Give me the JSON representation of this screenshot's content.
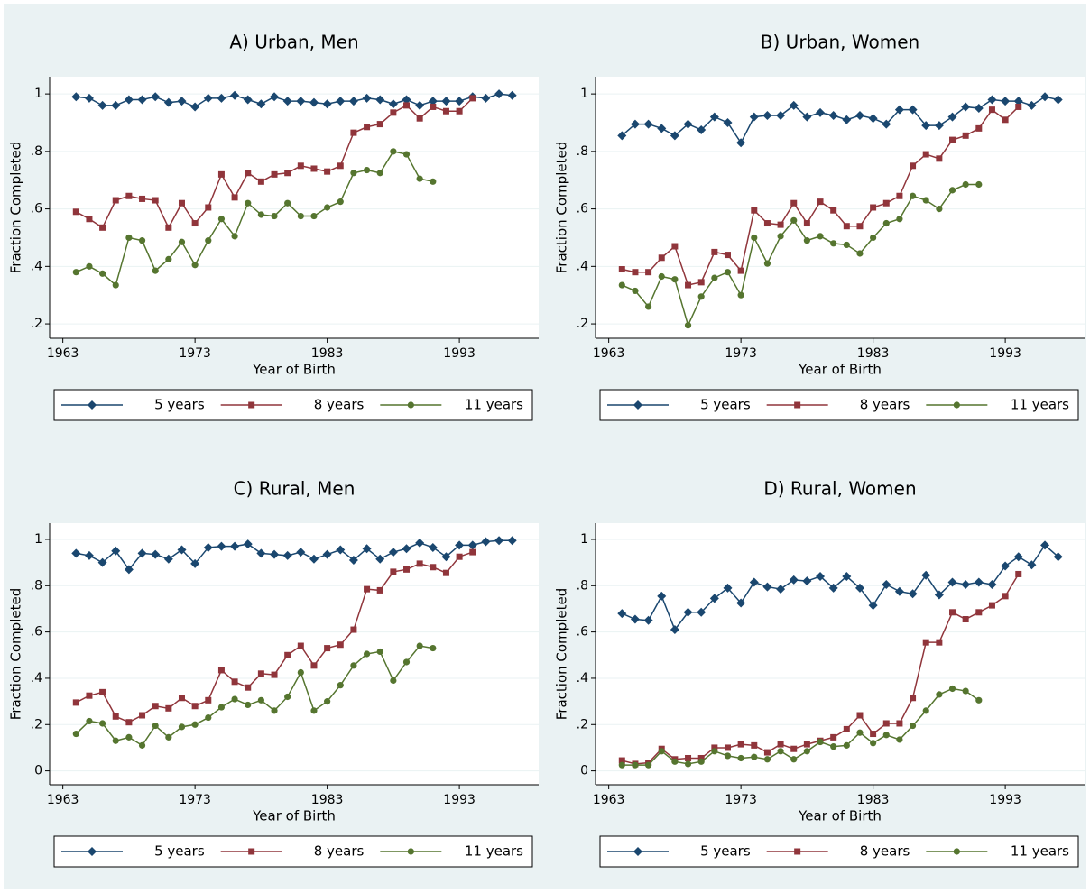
{
  "chart_data": [
    {
      "type": "line",
      "title": "A) Urban, Men",
      "x_label": "Year of Birth",
      "y_label": "Fraction Completed",
      "x": [
        1964,
        1965,
        1966,
        1967,
        1968,
        1969,
        1970,
        1971,
        1972,
        1973,
        1974,
        1975,
        1976,
        1977,
        1978,
        1979,
        1980,
        1981,
        1982,
        1983,
        1984,
        1985,
        1986,
        1987,
        1988,
        1989,
        1990,
        1991,
        1992,
        1993,
        1994,
        1995,
        1996,
        1997
      ],
      "xlim": [
        1962,
        1999
      ],
      "xticks": [
        1963,
        1973,
        1983,
        1993
      ],
      "ylim": [
        0.15,
        1.06
      ],
      "yticks": [
        {
          "value": 0.2,
          "label": ".2"
        },
        {
          "value": 0.4,
          "label": ".4"
        },
        {
          "value": 0.6,
          "label": ".6"
        },
        {
          "value": 0.8,
          "label": ".8"
        },
        1
      ],
      "grid": true,
      "series": [
        {
          "name": "5 years",
          "color": "#1a476f",
          "marker": "diamond",
          "values": [
            0.99,
            0.985,
            0.96,
            0.96,
            0.98,
            0.98,
            0.99,
            0.97,
            0.975,
            0.955,
            0.985,
            0.985,
            0.995,
            0.98,
            0.965,
            0.99,
            0.975,
            0.975,
            0.97,
            0.965,
            0.975,
            0.975,
            0.985,
            0.98,
            0.965,
            0.98,
            0.96,
            0.975,
            0.975,
            0.975,
            0.99,
            0.985,
            1.0,
            0.995
          ]
        },
        {
          "name": "8 years",
          "color": "#90353b",
          "marker": "square",
          "values": [
            0.59,
            0.565,
            0.535,
            0.63,
            0.645,
            0.635,
            0.63,
            0.535,
            0.62,
            0.55,
            0.605,
            0.72,
            0.64,
            0.725,
            0.695,
            0.72,
            0.725,
            0.75,
            0.74,
            0.73,
            0.75,
            0.865,
            0.885,
            0.895,
            0.935,
            0.96,
            0.915,
            0.955,
            0.94,
            0.94,
            0.985,
            null,
            null,
            null
          ]
        },
        {
          "name": "11 years",
          "color": "#55752f",
          "marker": "circle",
          "values": [
            0.38,
            0.4,
            0.375,
            0.335,
            0.5,
            0.49,
            0.385,
            0.425,
            0.485,
            0.405,
            0.49,
            0.565,
            0.505,
            0.62,
            0.58,
            0.575,
            0.62,
            0.575,
            0.575,
            0.605,
            0.625,
            0.725,
            0.735,
            0.725,
            0.8,
            0.79,
            0.705,
            0.695,
            null,
            null,
            null,
            null,
            null,
            null
          ]
        }
      ]
    },
    {
      "type": "line",
      "title": "B) Urban, Women",
      "x_label": "Year of Birth",
      "y_label": "Fraction Completed",
      "x": [
        1964,
        1965,
        1966,
        1967,
        1968,
        1969,
        1970,
        1971,
        1972,
        1973,
        1974,
        1975,
        1976,
        1977,
        1978,
        1979,
        1980,
        1981,
        1982,
        1983,
        1984,
        1985,
        1986,
        1987,
        1988,
        1989,
        1990,
        1991,
        1992,
        1993,
        1994,
        1995,
        1996,
        1997
      ],
      "xlim": [
        1962,
        1999
      ],
      "xticks": [
        1963,
        1973,
        1983,
        1993
      ],
      "ylim": [
        0.15,
        1.06
      ],
      "yticks": [
        {
          "value": 0.2,
          "label": ".2"
        },
        {
          "value": 0.4,
          "label": ".4"
        },
        {
          "value": 0.6,
          "label": ".6"
        },
        {
          "value": 0.8,
          "label": ".8"
        },
        1
      ],
      "grid": true,
      "series": [
        {
          "name": "5 years",
          "color": "#1a476f",
          "marker": "diamond",
          "values": [
            0.855,
            0.895,
            0.895,
            0.88,
            0.855,
            0.895,
            0.875,
            0.92,
            0.9,
            0.83,
            0.92,
            0.925,
            0.925,
            0.96,
            0.92,
            0.935,
            0.925,
            0.91,
            0.925,
            0.915,
            0.895,
            0.945,
            0.945,
            0.89,
            0.89,
            0.92,
            0.955,
            0.95,
            0.98,
            0.975,
            0.975,
            0.96,
            0.99,
            0.98
          ]
        },
        {
          "name": "8 years",
          "color": "#90353b",
          "marker": "square",
          "values": [
            0.39,
            0.38,
            0.38,
            0.43,
            0.47,
            0.335,
            0.345,
            0.45,
            0.44,
            0.385,
            0.595,
            0.55,
            0.545,
            0.62,
            0.55,
            0.625,
            0.595,
            0.54,
            0.54,
            0.605,
            0.62,
            0.645,
            0.75,
            0.79,
            0.775,
            0.84,
            0.855,
            0.88,
            0.945,
            0.91,
            0.955,
            null,
            null,
            null
          ]
        },
        {
          "name": "11 years",
          "color": "#55752f",
          "marker": "circle",
          "values": [
            0.335,
            0.315,
            0.26,
            0.365,
            0.355,
            0.195,
            0.295,
            0.36,
            0.38,
            0.3,
            0.5,
            0.41,
            0.505,
            0.56,
            0.49,
            0.505,
            0.48,
            0.475,
            0.445,
            0.5,
            0.55,
            0.565,
            0.645,
            0.63,
            0.6,
            0.665,
            0.685,
            0.685,
            null,
            null,
            null,
            null,
            null,
            null
          ]
        }
      ]
    },
    {
      "type": "line",
      "title": "C) Rural, Men",
      "x_label": "Year of Birth",
      "y_label": "Fraction Completed",
      "x": [
        1964,
        1965,
        1966,
        1967,
        1968,
        1969,
        1970,
        1971,
        1972,
        1973,
        1974,
        1975,
        1976,
        1977,
        1978,
        1979,
        1980,
        1981,
        1982,
        1983,
        1984,
        1985,
        1986,
        1987,
        1988,
        1989,
        1990,
        1991,
        1992,
        1993,
        1994,
        1995,
        1996,
        1997
      ],
      "xlim": [
        1962,
        1999
      ],
      "xticks": [
        1963,
        1973,
        1983,
        1993
      ],
      "ylim": [
        -0.06,
        1.07
      ],
      "yticks": [
        0,
        {
          "value": 0.2,
          "label": ".2"
        },
        {
          "value": 0.4,
          "label": ".4"
        },
        {
          "value": 0.6,
          "label": ".6"
        },
        {
          "value": 0.8,
          "label": ".8"
        },
        1
      ],
      "grid": true,
      "series": [
        {
          "name": "5 years",
          "color": "#1a476f",
          "marker": "diamond",
          "values": [
            0.94,
            0.93,
            0.9,
            0.95,
            0.87,
            0.94,
            0.935,
            0.915,
            0.955,
            0.895,
            0.965,
            0.97,
            0.97,
            0.98,
            0.94,
            0.935,
            0.93,
            0.945,
            0.915,
            0.935,
            0.955,
            0.91,
            0.96,
            0.915,
            0.945,
            0.96,
            0.985,
            0.965,
            0.925,
            0.975,
            0.975,
            0.99,
            0.995,
            0.995
          ]
        },
        {
          "name": "8 years",
          "color": "#90353b",
          "marker": "square",
          "values": [
            0.295,
            0.325,
            0.34,
            0.235,
            0.21,
            0.24,
            0.28,
            0.27,
            0.315,
            0.28,
            0.305,
            0.435,
            0.385,
            0.36,
            0.42,
            0.415,
            0.5,
            0.54,
            0.455,
            0.53,
            0.545,
            0.61,
            0.785,
            0.78,
            0.86,
            0.87,
            0.895,
            0.88,
            0.855,
            0.925,
            0.945,
            null,
            null,
            null
          ]
        },
        {
          "name": "11 years",
          "color": "#55752f",
          "marker": "circle",
          "values": [
            0.16,
            0.215,
            0.205,
            0.13,
            0.145,
            0.11,
            0.195,
            0.145,
            0.19,
            0.2,
            0.23,
            0.275,
            0.31,
            0.285,
            0.305,
            0.26,
            0.32,
            0.425,
            0.26,
            0.3,
            0.37,
            0.455,
            0.505,
            0.515,
            0.39,
            0.47,
            0.54,
            0.53,
            null,
            null,
            null,
            null,
            null,
            null
          ]
        }
      ]
    },
    {
      "type": "line",
      "title": "D) Rural, Women",
      "x_label": "Year of Birth",
      "y_label": "Fraction Completed",
      "x": [
        1964,
        1965,
        1966,
        1967,
        1968,
        1969,
        1970,
        1971,
        1972,
        1973,
        1974,
        1975,
        1976,
        1977,
        1978,
        1979,
        1980,
        1981,
        1982,
        1983,
        1984,
        1985,
        1986,
        1987,
        1988,
        1989,
        1990,
        1991,
        1992,
        1993,
        1994,
        1995,
        1996,
        1997
      ],
      "xlim": [
        1962,
        1999
      ],
      "xticks": [
        1963,
        1973,
        1983,
        1993
      ],
      "ylim": [
        -0.06,
        1.07
      ],
      "yticks": [
        0,
        {
          "value": 0.2,
          "label": ".2"
        },
        {
          "value": 0.4,
          "label": ".4"
        },
        {
          "value": 0.6,
          "label": ".6"
        },
        {
          "value": 0.8,
          "label": ".8"
        },
        1
      ],
      "grid": true,
      "series": [
        {
          "name": "5 years",
          "color": "#1a476f",
          "marker": "diamond",
          "values": [
            0.68,
            0.655,
            0.65,
            0.755,
            0.61,
            0.685,
            0.685,
            0.745,
            0.79,
            0.725,
            0.815,
            0.795,
            0.785,
            0.825,
            0.82,
            0.84,
            0.79,
            0.84,
            0.79,
            0.715,
            0.805,
            0.775,
            0.765,
            0.845,
            0.76,
            0.815,
            0.805,
            0.815,
            0.805,
            0.885,
            0.925,
            0.89,
            0.975,
            0.925
          ]
        },
        {
          "name": "8 years",
          "color": "#90353b",
          "marker": "square",
          "values": [
            0.045,
            0.03,
            0.035,
            0.095,
            0.05,
            0.055,
            0.055,
            0.1,
            0.1,
            0.115,
            0.11,
            0.08,
            0.115,
            0.095,
            0.115,
            0.13,
            0.145,
            0.18,
            0.24,
            0.16,
            0.205,
            0.205,
            0.315,
            0.555,
            0.555,
            0.685,
            0.655,
            0.685,
            0.715,
            0.755,
            0.85,
            null,
            null,
            null
          ]
        },
        {
          "name": "11 years",
          "color": "#55752f",
          "marker": "circle",
          "values": [
            0.025,
            0.025,
            0.025,
            0.085,
            0.04,
            0.03,
            0.04,
            0.085,
            0.065,
            0.055,
            0.06,
            0.05,
            0.085,
            0.05,
            0.085,
            0.125,
            0.105,
            0.11,
            0.165,
            0.12,
            0.155,
            0.135,
            0.195,
            0.26,
            0.33,
            0.355,
            0.345,
            0.305,
            null,
            null,
            null,
            null,
            null,
            null
          ]
        }
      ]
    }
  ]
}
